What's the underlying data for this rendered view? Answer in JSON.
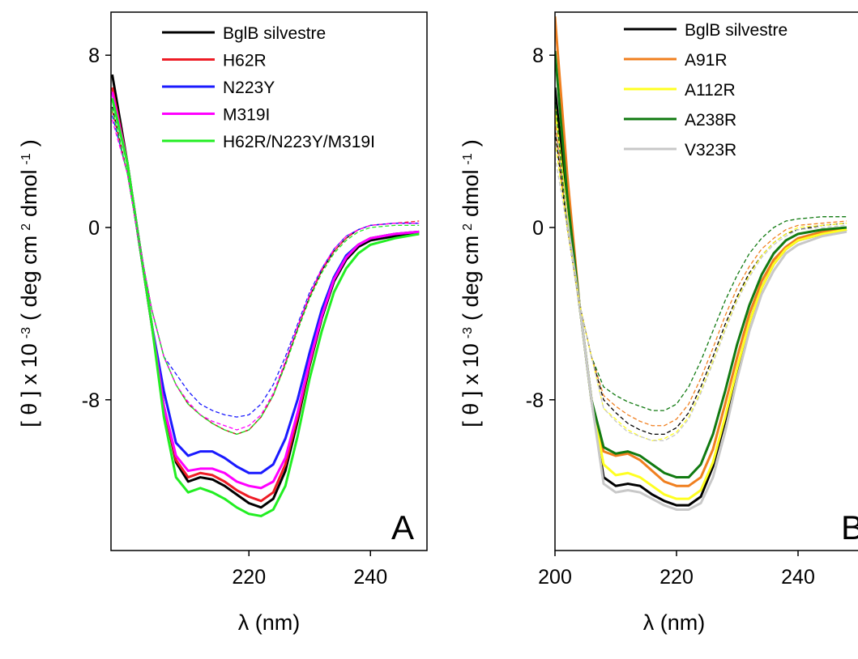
{
  "chart_data": [
    {
      "type": "line",
      "panel_label": "A",
      "xlabel": "λ (nm)",
      "ylabel": [
        "[ θ ] x 10",
        "-3",
        "( deg cm",
        "2",
        "dmol",
        "-1",
        ")"
      ],
      "xlim": [
        197.3,
        249.3
      ],
      "ylim": [
        -15,
        10
      ],
      "xticks": [
        220,
        240
      ],
      "yticks": [
        -8,
        0,
        8
      ],
      "x": [
        197.5,
        200,
        202,
        204,
        206,
        208,
        210,
        212,
        214,
        216,
        218,
        220,
        222,
        224,
        226,
        228,
        230,
        232,
        234,
        236,
        238,
        240,
        244,
        248
      ],
      "series": [
        {
          "name": "BglB silvestre",
          "color": "#000000",
          "values": [
            7.1,
            3.0,
            -0.8,
            -4.5,
            -8.3,
            -10.9,
            -11.8,
            -11.6,
            -11.7,
            -12.0,
            -12.4,
            -12.8,
            -13.0,
            -12.6,
            -11.3,
            -9.0,
            -6.4,
            -4.2,
            -2.5,
            -1.5,
            -0.9,
            -0.6,
            -0.4,
            -0.3
          ]
        },
        {
          "name": "H62R",
          "color": "#ee1c25",
          "values": [
            6.5,
            3.0,
            -0.8,
            -4.5,
            -8.3,
            -10.8,
            -11.6,
            -11.4,
            -11.5,
            -11.8,
            -12.2,
            -12.5,
            -12.7,
            -12.3,
            -11.0,
            -8.8,
            -6.3,
            -4.1,
            -2.4,
            -1.4,
            -0.8,
            -0.5,
            -0.3,
            -0.2
          ]
        },
        {
          "name": "N223Y",
          "color": "#1a1aff",
          "values": [
            6.0,
            3.0,
            -0.8,
            -4.5,
            -7.6,
            -10.0,
            -10.6,
            -10.4,
            -10.4,
            -10.7,
            -11.1,
            -11.4,
            -11.4,
            -11.0,
            -9.8,
            -8.0,
            -5.8,
            -3.8,
            -2.3,
            -1.3,
            -0.8,
            -0.5,
            -0.3,
            -0.2
          ]
        },
        {
          "name": "M319I",
          "color": "#ff00ff",
          "values": [
            6.3,
            3.0,
            -0.8,
            -4.5,
            -8.3,
            -10.6,
            -11.3,
            -11.2,
            -11.2,
            -11.4,
            -11.8,
            -12.0,
            -12.1,
            -11.8,
            -10.7,
            -8.6,
            -6.2,
            -4.1,
            -2.4,
            -1.4,
            -0.8,
            -0.5,
            -0.3,
            -0.2
          ]
        },
        {
          "name": "H62R/N223Y/M319I",
          "color": "#22ee22",
          "values": [
            6.0,
            3.0,
            -0.8,
            -4.5,
            -8.8,
            -11.6,
            -12.3,
            -12.1,
            -12.3,
            -12.6,
            -13.0,
            -13.3,
            -13.4,
            -13.1,
            -12.0,
            -9.7,
            -7.0,
            -4.8,
            -3.0,
            -1.9,
            -1.2,
            -0.8,
            -0.5,
            -0.3
          ]
        },
        {
          "color": "#000000",
          "dashed": true,
          "values": [
            5.6,
            2.5,
            -0.8,
            -3.8,
            -6.0,
            -7.3,
            -8.2,
            -8.7,
            -9.1,
            -9.4,
            -9.6,
            -9.4,
            -8.8,
            -7.8,
            -6.3,
            -4.7,
            -3.2,
            -2.0,
            -1.1,
            -0.5,
            -0.1,
            0.1,
            0.2,
            0.2
          ]
        },
        {
          "color": "#ee1c25",
          "dashed": true,
          "values": [
            5.4,
            2.5,
            -0.8,
            -3.8,
            -6.0,
            -7.3,
            -8.2,
            -8.7,
            -9.1,
            -9.4,
            -9.6,
            -9.4,
            -8.8,
            -7.8,
            -6.3,
            -4.7,
            -3.2,
            -2.0,
            -1.1,
            -0.5,
            -0.1,
            0.1,
            0.2,
            0.3
          ]
        },
        {
          "color": "#1a1aff",
          "dashed": true,
          "values": [
            5.2,
            2.5,
            -0.8,
            -3.8,
            -6.0,
            -6.8,
            -7.6,
            -8.2,
            -8.5,
            -8.7,
            -8.8,
            -8.7,
            -8.2,
            -7.3,
            -6.0,
            -4.5,
            -3.0,
            -1.9,
            -1.0,
            -0.4,
            -0.1,
            0.1,
            0.2,
            0.2
          ]
        },
        {
          "color": "#ff00ff",
          "dashed": true,
          "values": [
            5.0,
            2.5,
            -0.8,
            -3.8,
            -6.0,
            -7.3,
            -8.1,
            -8.7,
            -9.0,
            -9.2,
            -9.4,
            -9.2,
            -8.7,
            -7.7,
            -6.2,
            -4.6,
            -3.1,
            -1.9,
            -1.0,
            -0.4,
            -0.1,
            0.1,
            0.2,
            0.2
          ]
        },
        {
          "color": "#22ee22",
          "dashed": true,
          "values": [
            5.5,
            2.5,
            -0.8,
            -3.8,
            -6.0,
            -7.3,
            -8.2,
            -8.7,
            -9.1,
            -9.4,
            -9.6,
            -9.4,
            -8.8,
            -7.8,
            -6.4,
            -4.8,
            -3.3,
            -2.1,
            -1.2,
            -0.6,
            -0.2,
            0,
            0.1,
            0.1
          ]
        }
      ]
    },
    {
      "type": "line",
      "panel_label": "B",
      "xlabel": "λ (nm)",
      "ylabel": [
        "[ θ ] x 10",
        "-3",
        "( deg cm",
        "2",
        "dmol",
        "-1",
        ")"
      ],
      "xlim": [
        200,
        250
      ],
      "ylim": [
        -15,
        10
      ],
      "xticks": [
        200,
        220,
        240
      ],
      "yticks": [
        -8,
        0,
        8
      ],
      "x": [
        200,
        202,
        204,
        206,
        208,
        210,
        212,
        214,
        216,
        218,
        220,
        222,
        224,
        226,
        228,
        230,
        232,
        234,
        236,
        238,
        240,
        244,
        248
      ],
      "series": [
        {
          "name": "BglB silvestre",
          "color": "#000000",
          "values": [
            6.5,
            1.0,
            -3.5,
            -8.0,
            -11.6,
            -12.0,
            -11.9,
            -12.0,
            -12.4,
            -12.7,
            -12.9,
            -12.9,
            -12.5,
            -11.1,
            -9.0,
            -6.6,
            -4.4,
            -2.8,
            -1.7,
            -1.0,
            -0.6,
            -0.3,
            -0.1
          ]
        },
        {
          "name": "A91R",
          "color": "#f07f1f",
          "values": [
            9.8,
            2.5,
            -3.5,
            -8.0,
            -10.4,
            -10.6,
            -10.5,
            -10.8,
            -11.3,
            -11.8,
            -12.0,
            -12.0,
            -11.6,
            -10.3,
            -8.2,
            -6.0,
            -4.0,
            -2.5,
            -1.5,
            -0.9,
            -0.5,
            -0.2,
            -0.1
          ]
        },
        {
          "name": "A112R",
          "color": "#ffff22",
          "values": [
            5.5,
            0.5,
            -3.5,
            -8.0,
            -11.0,
            -11.5,
            -11.4,
            -11.6,
            -12.0,
            -12.4,
            -12.6,
            -12.6,
            -12.2,
            -10.9,
            -8.8,
            -6.5,
            -4.4,
            -2.8,
            -1.7,
            -1.0,
            -0.6,
            -0.3,
            -0.1
          ]
        },
        {
          "name": "A238R",
          "color": "#117a11",
          "values": [
            8.2,
            1.5,
            -3.5,
            -8.0,
            -10.2,
            -10.5,
            -10.4,
            -10.6,
            -11.0,
            -11.4,
            -11.6,
            -11.6,
            -11.0,
            -9.6,
            -7.6,
            -5.4,
            -3.6,
            -2.2,
            -1.2,
            -0.6,
            -0.3,
            -0.1,
            0
          ]
        },
        {
          "name": "V323R",
          "color": "#c8c8c8",
          "values": [
            4.8,
            0.3,
            -3.5,
            -8.0,
            -11.9,
            -12.3,
            -12.2,
            -12.3,
            -12.6,
            -12.9,
            -13.1,
            -13.1,
            -12.8,
            -11.6,
            -9.5,
            -7.0,
            -4.8,
            -3.1,
            -2.0,
            -1.2,
            -0.8,
            -0.4,
            -0.2
          ]
        },
        {
          "color": "#117a11",
          "dashed": true,
          "values": [
            6.0,
            0,
            -3.5,
            -6.0,
            -7.4,
            -7.8,
            -8.1,
            -8.3,
            -8.5,
            -8.5,
            -8.2,
            -7.4,
            -6.2,
            -4.8,
            -3.4,
            -2.2,
            -1.2,
            -0.5,
            0,
            0.3,
            0.4,
            0.5,
            0.5
          ]
        },
        {
          "color": "#f07f1f",
          "dashed": true,
          "values": [
            5.0,
            0,
            -3.5,
            -6.0,
            -7.8,
            -8.3,
            -8.7,
            -9.0,
            -9.2,
            -9.2,
            -8.9,
            -8.2,
            -7.0,
            -5.6,
            -4.1,
            -2.8,
            -1.8,
            -1.0,
            -0.5,
            -0.1,
            0.1,
            0.2,
            0.3
          ]
        },
        {
          "color": "#000000",
          "dashed": true,
          "values": [
            4.5,
            0,
            -3.5,
            -6.0,
            -8.0,
            -8.6,
            -9.1,
            -9.4,
            -9.6,
            -9.6,
            -9.3,
            -8.6,
            -7.4,
            -6.0,
            -4.5,
            -3.2,
            -2.1,
            -1.3,
            -0.7,
            -0.3,
            -0.1,
            0.1,
            0.2
          ]
        },
        {
          "color": "#ffff22",
          "dashed": true,
          "values": [
            4.0,
            0,
            -3.5,
            -6.0,
            -8.4,
            -8.9,
            -9.4,
            -9.7,
            -9.9,
            -9.8,
            -9.5,
            -8.8,
            -7.6,
            -6.2,
            -4.7,
            -3.3,
            -2.2,
            -1.3,
            -0.7,
            -0.3,
            0,
            0.1,
            0.2
          ]
        },
        {
          "color": "#c8c8c8",
          "dashed": true,
          "values": [
            3.3,
            0,
            -3.5,
            -6.0,
            -8.4,
            -9.0,
            -9.5,
            -9.7,
            -9.9,
            -9.9,
            -9.6,
            -8.9,
            -7.7,
            -6.3,
            -4.8,
            -3.4,
            -2.3,
            -1.4,
            -0.8,
            -0.4,
            -0.1,
            0,
            0.1
          ]
        }
      ]
    }
  ]
}
